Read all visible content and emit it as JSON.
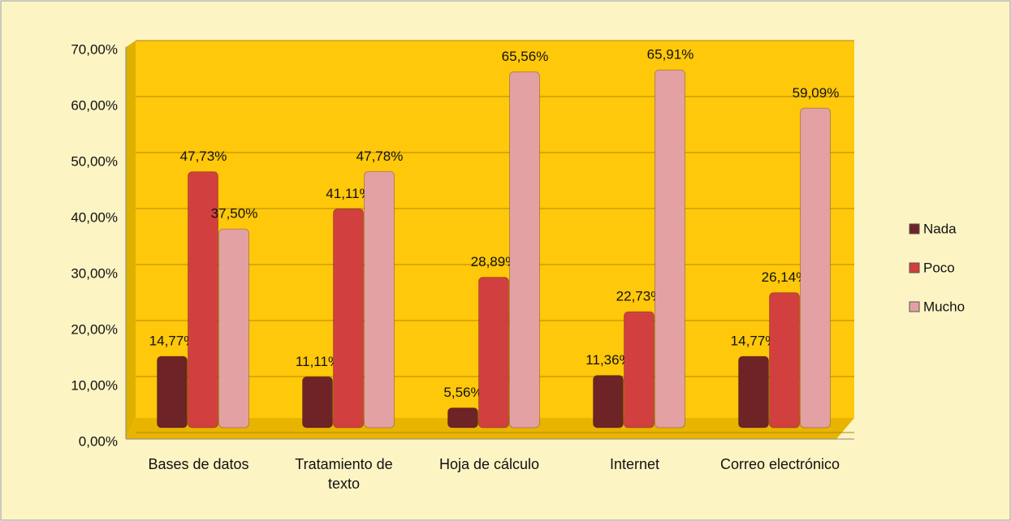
{
  "chart_data": {
    "type": "bar",
    "categories": [
      "Bases de datos",
      "Tratamiento de texto",
      "Hoja de cálculo",
      "Internet",
      "Correo electrónico"
    ],
    "series": [
      {
        "name": "Nada",
        "color": "#6e2326",
        "values": [
          14.77,
          11.11,
          5.56,
          11.36,
          14.77
        ],
        "value_labels": [
          "14,77%",
          "11,11%",
          "5,56%",
          "11,36%",
          "14,77%"
        ]
      },
      {
        "name": "Poco",
        "color": "#d23f3f",
        "values": [
          47.73,
          41.11,
          28.89,
          22.73,
          26.14
        ],
        "value_labels": [
          "47,73%",
          "41,11%",
          "28,89%",
          "22,73%",
          "26,14%"
        ]
      },
      {
        "name": "Mucho",
        "color": "#e3a1a3",
        "values": [
          37.5,
          47.78,
          65.56,
          65.91,
          59.09
        ],
        "value_labels": [
          "37,50%",
          "47,78%",
          "65,56%",
          "65,91%",
          "59,09%"
        ]
      }
    ],
    "ylim": [
      0,
      70
    ],
    "yticks": [
      {
        "value": 0,
        "label": "0,00%"
      },
      {
        "value": 10,
        "label": "10,00%"
      },
      {
        "value": 20,
        "label": "20,00%"
      },
      {
        "value": 30,
        "label": "30,00%"
      },
      {
        "value": 40,
        "label": "40,00%"
      },
      {
        "value": 50,
        "label": "50,00%"
      },
      {
        "value": 60,
        "label": "60,00%"
      },
      {
        "value": 70,
        "label": "70,00%"
      }
    ],
    "grid": true,
    "legend": "right"
  }
}
